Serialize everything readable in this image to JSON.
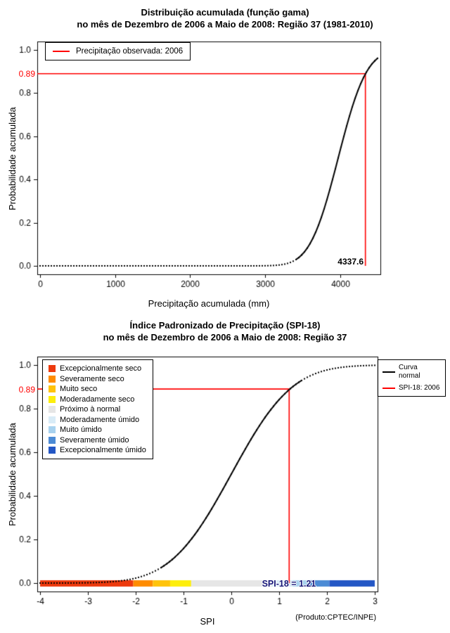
{
  "colors": {
    "marker": "#ff0000",
    "curve": "#000000",
    "spi_value_text": "#161678"
  },
  "chart_data": [
    {
      "type": "line",
      "title": "Distribuição acumulada (função gama)",
      "subtitle": "no mês de Dezembro de 2006 a Maio de 2008: Região 37 (1981-2010)",
      "xlabel": "Precipitação acumulada (mm)",
      "ylabel": "Probabilidade acumulada",
      "xlim": [
        0,
        4500
      ],
      "ylim": [
        0,
        1
      ],
      "xticks": [
        0,
        1000,
        2000,
        3000,
        4000
      ],
      "yticks": [
        "0.0",
        "0.2",
        "0.4",
        "0.6",
        "0.8",
        "1.0"
      ],
      "grid": false,
      "legend": {
        "position": "top-left",
        "items": [
          {
            "label": "Precipitação observada: 2006",
            "color": "#ff0000"
          }
        ]
      },
      "curve": {
        "name": "gamma-cdf",
        "color": "#000000",
        "mean": 3975,
        "sd": 297,
        "points": [
          [
            3000,
            0.0
          ],
          [
            3250,
            0.007
          ],
          [
            3500,
            0.055
          ],
          [
            3750,
            0.22
          ],
          [
            4000,
            0.53
          ],
          [
            4250,
            0.82
          ],
          [
            4337.6,
            0.89
          ],
          [
            4500,
            0.96
          ]
        ]
      },
      "marker": {
        "x": 4337.6,
        "y": 0.89,
        "x_label": "4337.6",
        "y_label": "0.89",
        "color": "#ff0000"
      }
    },
    {
      "type": "line",
      "title": "Índice Padronizado de Precipitação (SPI-18)",
      "subtitle": "no mês de Dezembro de 2006 a Maio de 2008: Região 37",
      "xlabel": "SPI",
      "ylabel": "Probabilidade acumulada",
      "footnote": "(Produto:CPTEC/INPE)",
      "xlim": [
        -4,
        3
      ],
      "ylim": [
        0,
        1
      ],
      "xticks": [
        -4,
        -3,
        -2,
        -1,
        0,
        1,
        2,
        3
      ],
      "yticks": [
        "0.0",
        "0.2",
        "0.4",
        "0.6",
        "0.8",
        "1.0"
      ],
      "grid": false,
      "curve": {
        "name": "normal-cdf",
        "color": "#000000",
        "mean": 0,
        "sd": 1,
        "points": [
          [
            -4,
            0.0
          ],
          [
            -3,
            0.001
          ],
          [
            -2,
            0.023
          ],
          [
            -1,
            0.159
          ],
          [
            0,
            0.5
          ],
          [
            1,
            0.841
          ],
          [
            1.21,
            0.89
          ],
          [
            2,
            0.977
          ],
          [
            3,
            0.999
          ]
        ]
      },
      "marker": {
        "x": 1.21,
        "y": 0.89,
        "x_label": "SPI-18 = 1.21",
        "y_label": "0.89",
        "color": "#ff0000"
      },
      "curve_legend": {
        "position": "top-right",
        "items": [
          {
            "label": "Curva normal",
            "color": "#000000"
          },
          {
            "label": "SPI-18: 2006",
            "color": "#ff0000"
          }
        ]
      },
      "categories": [
        {
          "label": "Excepcionalmente seco",
          "color": "#ed3a0e",
          "range": [
            -4,
            -2.05
          ]
        },
        {
          "label": "Severamente seco",
          "color": "#ff8c00",
          "range": [
            -2.05,
            -1.64
          ]
        },
        {
          "label": "Muito seco",
          "color": "#ffc30b",
          "range": [
            -1.64,
            -1.28
          ]
        },
        {
          "label": "Moderadamente seco",
          "color": "#fdee0c",
          "range": [
            -1.28,
            -0.84
          ]
        },
        {
          "label": "Próximo à normal",
          "color": "#e6e6e6",
          "range": [
            -0.84,
            0.84
          ]
        },
        {
          "label": "Moderadamente úmido",
          "color": "#d9ecf7",
          "range": [
            0.84,
            1.28
          ]
        },
        {
          "label": "Muito úmido",
          "color": "#a8d2ef",
          "range": [
            1.28,
            1.64
          ]
        },
        {
          "label": "Severamente úmido",
          "color": "#4c8bd5",
          "range": [
            1.64,
            2.05
          ]
        },
        {
          "label": "Excepcionalmente úmido",
          "color": "#2457c5",
          "range": [
            2.05,
            3
          ]
        }
      ]
    }
  ]
}
